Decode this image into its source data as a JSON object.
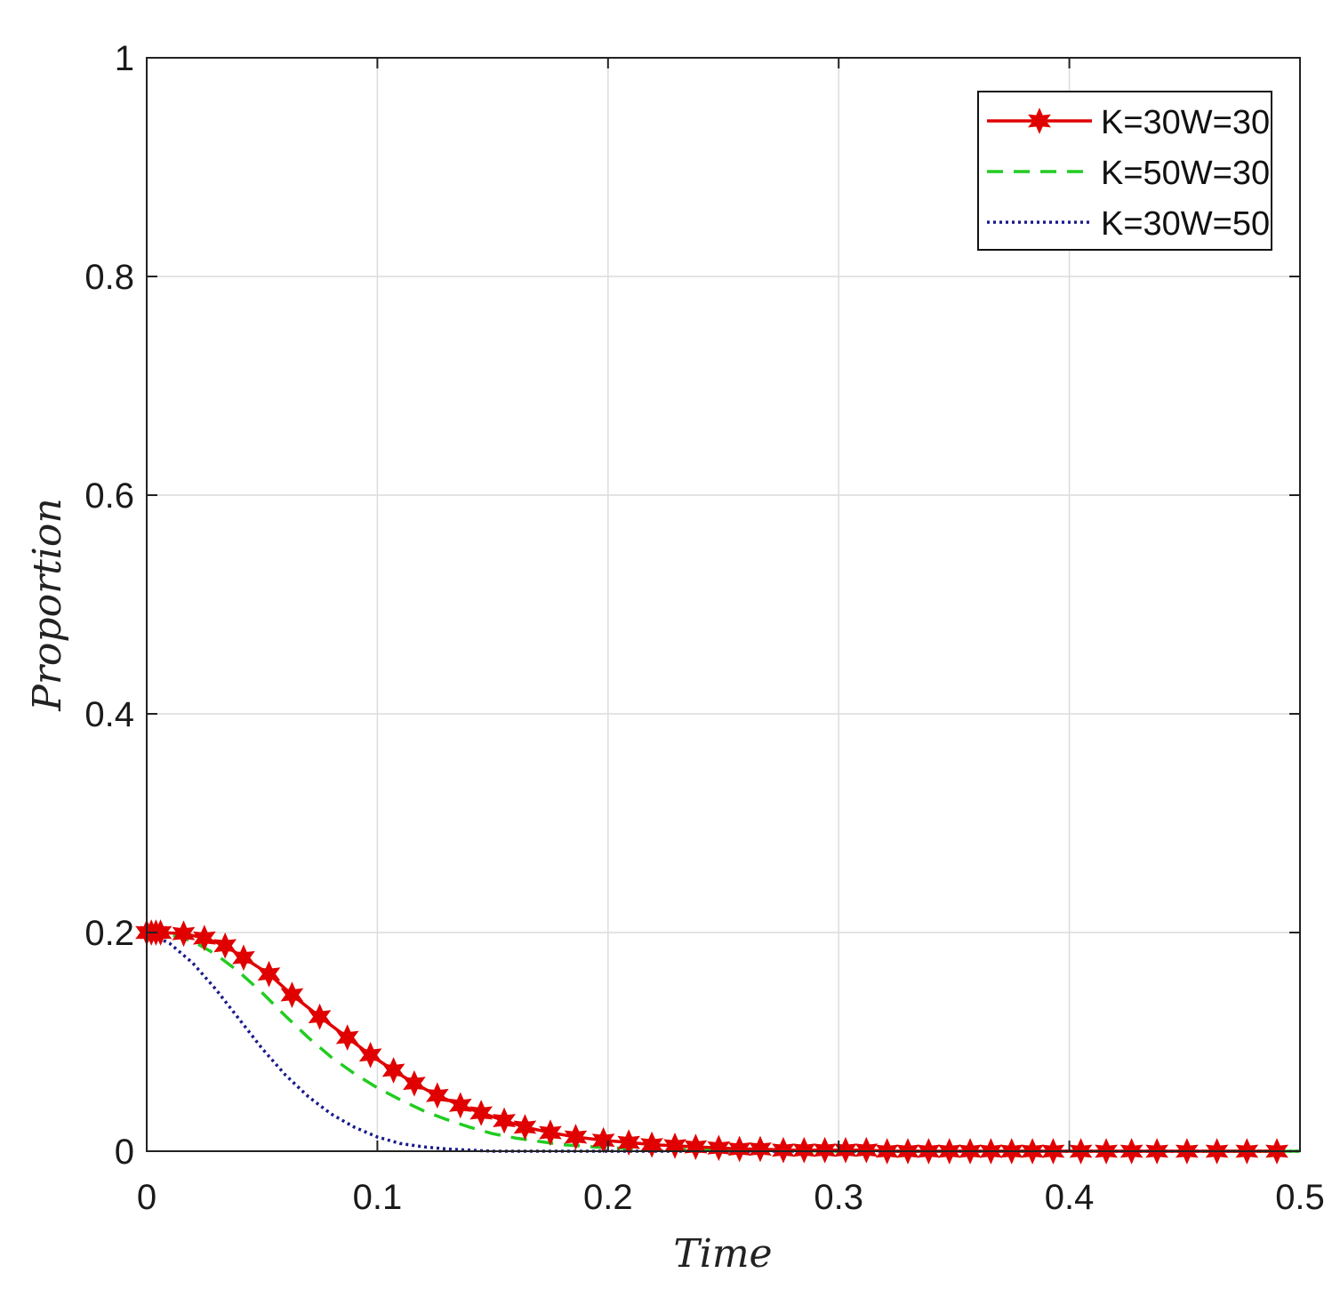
{
  "chart_data": {
    "type": "line",
    "xlabel": "Time",
    "ylabel": "Proportion",
    "xlim": [
      0,
      0.5
    ],
    "ylim": [
      0,
      1
    ],
    "xticks": [
      "0",
      "0.1",
      "0.2",
      "0.3",
      "0.4",
      "0.5"
    ],
    "yticks": [
      "0",
      "0.2",
      "0.4",
      "0.6",
      "0.8",
      "1"
    ],
    "grid": true,
    "legend_position": "top-right",
    "series": [
      {
        "name": "K=30W=30",
        "color": "#e00000",
        "line_style": "solid",
        "marker": "star",
        "x": [
          0.0,
          0.002,
          0.004,
          0.006,
          0.016,
          0.025,
          0.034,
          0.042,
          0.053,
          0.063,
          0.075,
          0.087,
          0.097,
          0.107,
          0.116,
          0.126,
          0.136,
          0.145,
          0.155,
          0.164,
          0.175,
          0.186,
          0.198,
          0.209,
          0.219,
          0.229,
          0.238,
          0.248,
          0.257,
          0.266,
          0.276,
          0.285,
          0.294,
          0.303,
          0.312,
          0.321,
          0.33,
          0.339,
          0.348,
          0.357,
          0.366,
          0.375,
          0.384,
          0.393,
          0.405,
          0.416,
          0.427,
          0.438,
          0.451,
          0.464,
          0.477,
          0.49
        ],
        "y": [
          0.2,
          0.2,
          0.2,
          0.2,
          0.199,
          0.195,
          0.188,
          0.177,
          0.162,
          0.143,
          0.123,
          0.104,
          0.088,
          0.074,
          0.062,
          0.051,
          0.042,
          0.035,
          0.028,
          0.022,
          0.017,
          0.013,
          0.01,
          0.008,
          0.006,
          0.005,
          0.004,
          0.003,
          0.002,
          0.002,
          0.001,
          0.001,
          0.001,
          0.001,
          0.001,
          0.0,
          0.0,
          0.0,
          0.0,
          0.0,
          0.0,
          0.0,
          0.0,
          0.0,
          0.0,
          0.0,
          0.0,
          0.0,
          0.0,
          0.0,
          0.0,
          0.0
        ]
      },
      {
        "name": "K=50W=30",
        "color": "#22cc22",
        "line_style": "dashed",
        "marker": "none",
        "x": [
          0.0,
          0.01,
          0.02,
          0.03,
          0.04,
          0.05,
          0.06,
          0.07,
          0.08,
          0.09,
          0.1,
          0.11,
          0.12,
          0.13,
          0.14,
          0.15,
          0.16,
          0.18,
          0.2,
          0.22,
          0.25,
          0.3,
          0.4,
          0.5
        ],
        "y": [
          0.2,
          0.198,
          0.192,
          0.18,
          0.164,
          0.145,
          0.124,
          0.104,
          0.086,
          0.071,
          0.058,
          0.047,
          0.037,
          0.029,
          0.022,
          0.016,
          0.012,
          0.006,
          0.003,
          0.002,
          0.001,
          0.0,
          0.0,
          0.0
        ]
      },
      {
        "name": "K=30W=50",
        "color": "#1a1a8c",
        "line_style": "dotted",
        "marker": "none",
        "x": [
          0.0,
          0.01,
          0.02,
          0.03,
          0.04,
          0.05,
          0.06,
          0.07,
          0.08,
          0.09,
          0.1,
          0.11,
          0.12,
          0.13,
          0.14,
          0.15,
          0.16,
          0.18,
          0.2,
          0.25,
          0.3,
          0.4,
          0.5
        ],
        "y": [
          0.2,
          0.19,
          0.172,
          0.148,
          0.121,
          0.094,
          0.07,
          0.05,
          0.034,
          0.022,
          0.013,
          0.007,
          0.004,
          0.002,
          0.001,
          0.0,
          0.0,
          0.0,
          0.0,
          0.0,
          0.0,
          0.0,
          0.0
        ]
      }
    ]
  }
}
